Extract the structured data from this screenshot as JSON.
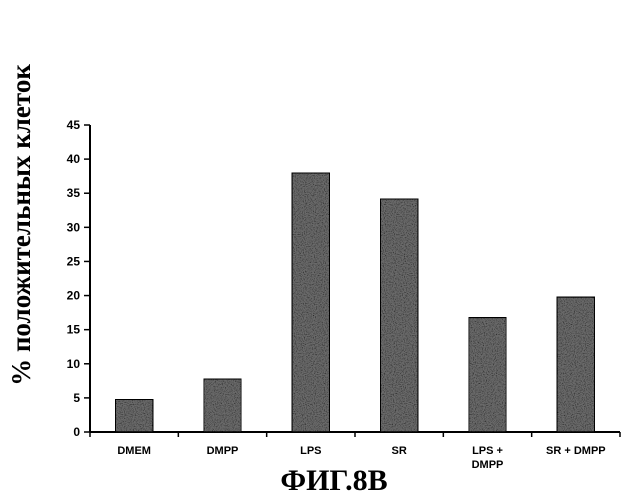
{
  "chart_data": {
    "type": "bar",
    "categories": [
      [
        "DMEM"
      ],
      [
        "DMPP"
      ],
      [
        "LPS"
      ],
      [
        "SR"
      ],
      [
        "LPS +",
        "DMPP"
      ],
      [
        "SR + DMPP"
      ]
    ],
    "values": [
      4.8,
      7.8,
      38,
      34.2,
      16.8,
      19.8
    ],
    "ylabel": "% положительных клеток",
    "ylim": [
      0,
      45
    ],
    "yticks": [
      0,
      5,
      10,
      15,
      20,
      25,
      30,
      35,
      40,
      45
    ],
    "grid": false,
    "legend": "none",
    "bar_color": "#6b6b6b",
    "caption": "ФИГ.8В"
  }
}
